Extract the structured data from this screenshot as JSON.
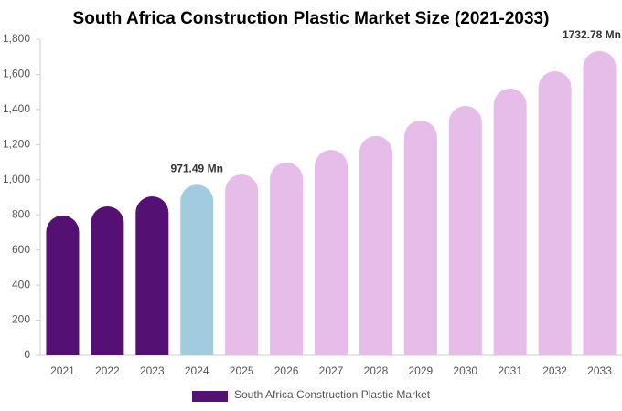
{
  "chart_data": {
    "type": "bar",
    "title": "South Africa Construction Plastic Market Size (2021-2033)",
    "categories": [
      "2021",
      "2022",
      "2023",
      "2024",
      "2025",
      "2026",
      "2027",
      "2028",
      "2029",
      "2030",
      "2031",
      "2032",
      "2033"
    ],
    "series": [
      {
        "name": "South Africa Construction Plastic Market",
        "color": "#541173",
        "values": [
          796,
          848,
          905,
          971.49,
          1030,
          1098,
          1170,
          1249,
          1337,
          1420,
          1519,
          1618,
          1732.78
        ],
        "value_labels": [
          null,
          null,
          null,
          "971.49 Mn",
          null,
          null,
          null,
          null,
          null,
          null,
          null,
          null,
          "1732.78 Mn"
        ],
        "colors": [
          "#541173",
          "#541173",
          "#541173",
          "#a3cbdf",
          "#e6bde9",
          "#e6bde9",
          "#e6bde9",
          "#e6bde9",
          "#e6bde9",
          "#e6bde9",
          "#e6bde9",
          "#e6bde9",
          "#e6bde9"
        ]
      }
    ],
    "ylim": [
      0,
      1800
    ],
    "yticks": [
      0,
      200,
      400,
      600,
      800,
      {
        "value": 1000,
        "label": "1,000"
      },
      {
        "value": 1200,
        "label": "1,200"
      },
      {
        "value": 1400,
        "label": "1,400"
      },
      {
        "value": 1600,
        "label": "1,600"
      },
      {
        "value": 1800,
        "label": "1,800"
      }
    ],
    "grid": false,
    "legend": "bottom"
  }
}
